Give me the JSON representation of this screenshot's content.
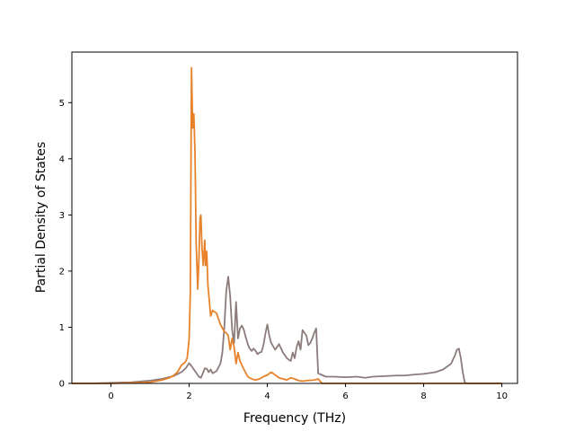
{
  "chart_data": {
    "type": "line",
    "title": "",
    "xlabel": "Frequency (THz)",
    "ylabel": "Partial Density of States",
    "xlim": [
      -1.0,
      10.4
    ],
    "ylim": [
      0,
      5.9
    ],
    "xticks": [
      0,
      2,
      4,
      6,
      8,
      10
    ],
    "yticks": [
      0,
      1,
      2,
      3,
      4,
      5
    ],
    "grid": false,
    "series": [
      {
        "color": "#8c7b7b",
        "x": [
          -1.0,
          -0.5,
          0.0,
          0.5,
          1.0,
          1.3,
          1.6,
          1.8,
          1.9,
          2.0,
          2.05,
          2.15,
          2.25,
          2.3,
          2.35,
          2.4,
          2.45,
          2.5,
          2.55,
          2.6,
          2.7,
          2.8,
          2.85,
          2.9,
          2.95,
          3.0,
          3.05,
          3.1,
          3.15,
          3.2,
          3.25,
          3.3,
          3.35,
          3.4,
          3.45,
          3.5,
          3.55,
          3.6,
          3.65,
          3.7,
          3.75,
          3.8,
          3.85,
          3.9,
          3.95,
          4.0,
          4.05,
          4.1,
          4.2,
          4.3,
          4.4,
          4.5,
          4.55,
          4.6,
          4.65,
          4.7,
          4.75,
          4.8,
          4.85,
          4.9,
          4.95,
          5.0,
          5.05,
          5.1,
          5.15,
          5.2,
          5.25,
          5.3,
          5.4,
          5.5,
          5.7,
          6.0,
          6.3,
          6.5,
          6.7,
          7.0,
          7.3,
          7.5,
          7.8,
          8.0,
          8.3,
          8.5,
          8.6,
          8.7,
          8.8,
          8.85,
          8.9,
          8.95,
          9.0,
          9.05,
          9.1,
          9.5,
          10.0
        ],
        "values": [
          0.0,
          0.0,
          0.01,
          0.02,
          0.05,
          0.08,
          0.13,
          0.2,
          0.26,
          0.36,
          0.32,
          0.22,
          0.12,
          0.1,
          0.18,
          0.27,
          0.26,
          0.2,
          0.25,
          0.18,
          0.22,
          0.35,
          0.55,
          1.0,
          1.65,
          1.9,
          1.55,
          0.95,
          0.72,
          1.45,
          0.8,
          0.98,
          1.03,
          0.95,
          0.82,
          0.7,
          0.62,
          0.58,
          0.62,
          0.58,
          0.52,
          0.55,
          0.56,
          0.68,
          0.88,
          1.05,
          0.85,
          0.72,
          0.6,
          0.7,
          0.55,
          0.45,
          0.42,
          0.4,
          0.55,
          0.45,
          0.65,
          0.75,
          0.6,
          0.95,
          0.9,
          0.85,
          0.68,
          0.72,
          0.8,
          0.9,
          0.98,
          0.18,
          0.15,
          0.12,
          0.12,
          0.11,
          0.12,
          0.1,
          0.12,
          0.13,
          0.14,
          0.14,
          0.16,
          0.17,
          0.2,
          0.25,
          0.3,
          0.35,
          0.5,
          0.6,
          0.62,
          0.45,
          0.2,
          0.02,
          0.0,
          0.0,
          0.0
        ]
      },
      {
        "color": "#e8822a",
        "x": [
          -1.0,
          0.0,
          0.5,
          1.0,
          1.3,
          1.5,
          1.6,
          1.7,
          1.8,
          1.9,
          1.95,
          2.0,
          2.03,
          2.06,
          2.09,
          2.12,
          2.15,
          2.18,
          2.22,
          2.25,
          2.28,
          2.3,
          2.33,
          2.36,
          2.4,
          2.42,
          2.45,
          2.48,
          2.5,
          2.55,
          2.6,
          2.7,
          2.8,
          2.9,
          2.95,
          3.0,
          3.05,
          3.1,
          3.15,
          3.2,
          3.25,
          3.3,
          3.4,
          3.5,
          3.6,
          3.7,
          3.8,
          3.9,
          4.0,
          4.1,
          4.2,
          4.3,
          4.4,
          4.5,
          4.6,
          4.7,
          4.8,
          4.9,
          5.0,
          5.2,
          5.3,
          5.4,
          6.0,
          10.0
        ],
        "values": [
          0.0,
          0.0,
          0.01,
          0.02,
          0.06,
          0.1,
          0.14,
          0.2,
          0.32,
          0.38,
          0.45,
          0.8,
          1.6,
          5.62,
          4.55,
          4.8,
          4.1,
          2.5,
          1.68,
          2.2,
          2.95,
          3.0,
          2.4,
          2.1,
          2.55,
          2.1,
          2.35,
          1.75,
          1.6,
          1.2,
          1.3,
          1.25,
          1.05,
          0.92,
          0.9,
          0.85,
          0.6,
          0.8,
          0.65,
          0.35,
          0.55,
          0.4,
          0.25,
          0.12,
          0.08,
          0.06,
          0.08,
          0.12,
          0.15,
          0.2,
          0.15,
          0.1,
          0.08,
          0.06,
          0.1,
          0.08,
          0.05,
          0.04,
          0.05,
          0.06,
          0.08,
          0.0,
          0.0,
          0.0
        ]
      }
    ]
  }
}
